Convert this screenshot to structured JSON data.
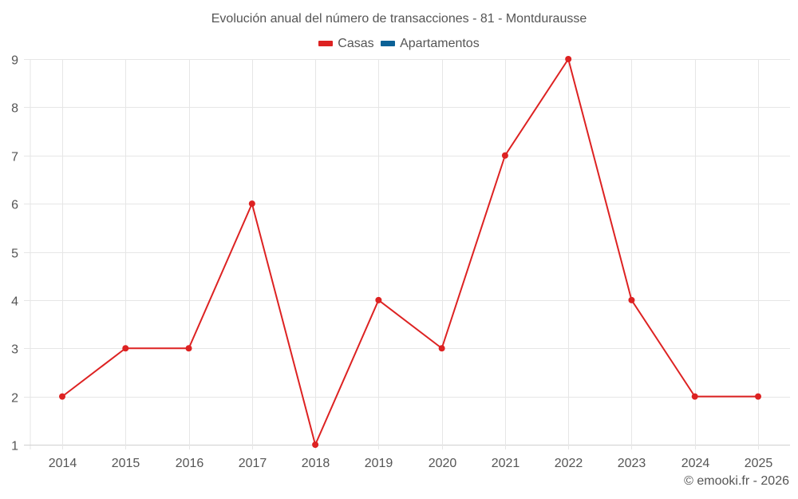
{
  "header": {
    "title": "Evolución anual del número de transacciones - 81 - Montdurausse"
  },
  "legend": {
    "items": [
      {
        "label": "Casas",
        "color": "#dd2222"
      },
      {
        "label": "Apartamentos",
        "color": "#0b6196"
      }
    ]
  },
  "footer": {
    "credit": "© emooki.fr - 2026"
  },
  "colors": {
    "casas": "#dd2222",
    "apartamentos": "#0b6196",
    "grid": "#e6e6e6",
    "axis": "#d0d0d0",
    "text": "#555555"
  },
  "chart_data": {
    "type": "line",
    "title": "Evolución anual del número de transacciones - 81 - Montdurausse",
    "xlabel": "",
    "ylabel": "",
    "categories": [
      "2014",
      "2015",
      "2016",
      "2017",
      "2018",
      "2019",
      "2020",
      "2021",
      "2022",
      "2023",
      "2024",
      "2025"
    ],
    "series": [
      {
        "name": "Casas",
        "color": "#dd2222",
        "values": [
          2,
          3,
          3,
          6,
          1,
          4,
          3,
          7,
          9,
          4,
          2,
          2
        ]
      },
      {
        "name": "Apartamentos",
        "color": "#0b6196",
        "values": []
      }
    ],
    "ylim": [
      1,
      9
    ],
    "yticks": [
      1,
      2,
      3,
      4,
      5,
      6,
      7,
      8,
      9
    ],
    "grid": true,
    "legend_position": "top"
  }
}
